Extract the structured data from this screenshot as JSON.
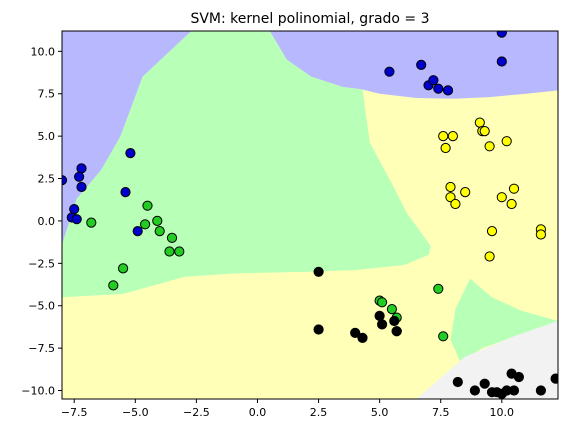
{
  "chart_data": {
    "type": "scatter",
    "title": "SVM: kernel polinomial, grado = 3",
    "xlabel": "",
    "ylabel": "",
    "xlim": [
      -8.0,
      12.3
    ],
    "ylim": [
      -10.5,
      11.2
    ],
    "x_ticks": [
      -7.5,
      -5.0,
      -2.5,
      0.0,
      2.5,
      5.0,
      7.5,
      10.0
    ],
    "x_tick_labels": [
      "−7.5",
      "−5.0",
      "−2.5",
      "0.0",
      "2.5",
      "5.0",
      "7.5",
      "10.0"
    ],
    "y_ticks": [
      -10.0,
      -7.5,
      -5.0,
      -2.5,
      0.0,
      2.5,
      5.0,
      7.5,
      10.0
    ],
    "y_tick_labels": [
      "−10.0",
      "−7.5",
      "−5.0",
      "−2.5",
      "0.0",
      "2.5",
      "5.0",
      "7.5",
      "10.0"
    ],
    "grid": false,
    "decision_regions": [
      {
        "class": "blue",
        "color": "#b8b8ff",
        "description": "upper-left and top-center region",
        "polygon": [
          [
            -8.0,
            11.2
          ],
          [
            -2.7,
            11.2
          ],
          [
            -4.7,
            8.5
          ],
          [
            -5.6,
            5.0
          ],
          [
            -6.4,
            3.0
          ],
          [
            -7.4,
            1.3
          ],
          [
            -8.0,
            -1.4
          ]
        ]
      },
      {
        "class": "blue",
        "color": "#b8b8ff",
        "description": "top-right region",
        "polygon": [
          [
            0.5,
            11.2
          ],
          [
            12.3,
            11.2
          ],
          [
            12.3,
            7.7
          ],
          [
            11.0,
            7.5
          ],
          [
            9.5,
            7.3
          ],
          [
            8.0,
            7.2
          ],
          [
            6.5,
            7.25
          ],
          [
            5.0,
            7.5
          ],
          [
            4.3,
            7.75
          ],
          [
            3.5,
            7.9
          ],
          [
            2.2,
            8.5
          ],
          [
            1.2,
            9.5
          ]
        ]
      },
      {
        "class": "green",
        "color": "#b8ffb8",
        "description": "central/left region",
        "polygon": [
          [
            -2.7,
            11.2
          ],
          [
            0.5,
            11.2
          ],
          [
            1.2,
            9.5
          ],
          [
            2.2,
            8.5
          ],
          [
            3.5,
            7.9
          ],
          [
            4.3,
            7.75
          ],
          [
            4.6,
            4.6
          ],
          [
            5.5,
            2.2
          ],
          [
            6.1,
            0.5
          ],
          [
            7.1,
            -1.5
          ],
          [
            7.0,
            -2.0
          ],
          [
            6.0,
            -2.6
          ],
          [
            4.0,
            -2.9
          ],
          [
            2.0,
            -3.0
          ],
          [
            -1.0,
            -3.1
          ],
          [
            -3.0,
            -3.3
          ],
          [
            -5.5,
            -4.3
          ],
          [
            -8.0,
            -4.5
          ],
          [
            -8.0,
            -1.4
          ],
          [
            -7.4,
            1.3
          ],
          [
            -6.4,
            3.0
          ],
          [
            -5.6,
            5.0
          ],
          [
            -4.7,
            8.5
          ]
        ]
      },
      {
        "class": "green",
        "color": "#b8ffb8",
        "description": "lower-right island",
        "polygon": [
          [
            8.7,
            -3.4
          ],
          [
            9.6,
            -4.5
          ],
          [
            10.8,
            -5.3
          ],
          [
            12.3,
            -5.9
          ],
          [
            9.2,
            -7.5
          ],
          [
            8.3,
            -8.3
          ],
          [
            7.9,
            -7.0
          ],
          [
            8.1,
            -5.2
          ]
        ]
      },
      {
        "class": "black",
        "color": "#f2f2f2",
        "description": "bottom-right corner region",
        "polygon": [
          [
            6.5,
            -10.5
          ],
          [
            12.3,
            -10.5
          ],
          [
            12.3,
            -5.9
          ],
          [
            10.5,
            -6.8
          ],
          [
            8.5,
            -8.0
          ]
        ]
      }
    ],
    "background_color": "#ffffb8",
    "series": [
      {
        "color": "#0000cc",
        "points": [
          [
            -8.0,
            2.4
          ],
          [
            -7.2,
            3.1
          ],
          [
            -7.3,
            2.6
          ],
          [
            -7.2,
            2.0
          ],
          [
            -5.2,
            4.0
          ],
          [
            -5.4,
            1.7
          ],
          [
            -7.6,
            0.2
          ],
          [
            -7.5,
            0.7
          ],
          [
            -7.4,
            0.1
          ],
          [
            -4.9,
            -0.6
          ],
          [
            5.4,
            8.8
          ],
          [
            6.7,
            9.2
          ],
          [
            7.0,
            8.0
          ],
          [
            7.2,
            8.3
          ],
          [
            7.4,
            7.8
          ],
          [
            7.8,
            7.7
          ],
          [
            10.0,
            11.1
          ],
          [
            10.0,
            9.4
          ]
        ]
      },
      {
        "color": "#ffff00",
        "points": [
          [
            7.6,
            5.0
          ],
          [
            7.7,
            4.3
          ],
          [
            8.0,
            5.0
          ],
          [
            9.1,
            5.8
          ],
          [
            9.2,
            5.3
          ],
          [
            9.3,
            5.3
          ],
          [
            9.5,
            4.4
          ],
          [
            10.2,
            4.7
          ],
          [
            7.9,
            2.0
          ],
          [
            8.5,
            1.7
          ],
          [
            7.9,
            1.4
          ],
          [
            8.1,
            1.0
          ],
          [
            10.0,
            1.4
          ],
          [
            10.5,
            1.9
          ],
          [
            10.4,
            1.0
          ],
          [
            9.6,
            -0.6
          ],
          [
            9.5,
            -2.1
          ],
          [
            11.6,
            -0.5
          ],
          [
            11.6,
            -0.8
          ]
        ]
      },
      {
        "color": "#22cc22",
        "points": [
          [
            -4.5,
            0.9
          ],
          [
            -4.1,
            0.0
          ],
          [
            -4.0,
            -0.6
          ],
          [
            -4.6,
            -0.2
          ],
          [
            -6.8,
            -0.1
          ],
          [
            -3.5,
            -1.0
          ],
          [
            -3.2,
            -1.8
          ],
          [
            -3.6,
            -1.8
          ],
          [
            -5.5,
            -2.8
          ],
          [
            -5.9,
            -3.8
          ],
          [
            5.0,
            -4.7
          ],
          [
            5.1,
            -4.8
          ],
          [
            5.5,
            -5.2
          ],
          [
            5.7,
            -5.7
          ],
          [
            5.7,
            -6.5
          ],
          [
            7.4,
            -4.0
          ],
          [
            7.6,
            -6.8
          ]
        ]
      },
      {
        "color": "#000000",
        "points": [
          [
            2.5,
            -3.0
          ],
          [
            2.5,
            -6.4
          ],
          [
            5.0,
            -5.6
          ],
          [
            5.1,
            -6.1
          ],
          [
            5.6,
            -5.9
          ],
          [
            5.7,
            -6.5
          ],
          [
            4.0,
            -6.6
          ],
          [
            4.3,
            -6.9
          ],
          [
            8.2,
            -9.5
          ],
          [
            9.3,
            -9.6
          ],
          [
            8.9,
            -10.0
          ],
          [
            9.6,
            -10.1
          ],
          [
            9.8,
            -10.1
          ],
          [
            10.0,
            -10.2
          ],
          [
            10.4,
            -9.0
          ],
          [
            10.7,
            -9.2
          ],
          [
            10.2,
            -10.0
          ],
          [
            10.5,
            -10.0
          ],
          [
            11.6,
            -10.0
          ],
          [
            12.2,
            -9.3
          ]
        ]
      }
    ]
  }
}
